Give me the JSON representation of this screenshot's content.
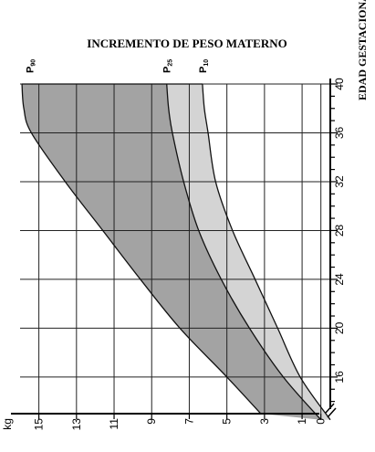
{
  "chart_data": {
    "type": "area",
    "title": "INCREMENTO DE PESO MATERNO",
    "xlabel": "EDAD GESTACIONAL (semanas)",
    "ylabel": "kg",
    "x_axis": {
      "label": "EDAD GESTACIONAL (semanas)",
      "range": [
        13,
        40
      ],
      "ticks": [
        16,
        20,
        24,
        28,
        32,
        36,
        40
      ],
      "break_mark": true
    },
    "y_axis": {
      "label": "kg",
      "range": [
        -0.5,
        16
      ],
      "ticks": [
        15,
        13,
        11,
        9,
        7,
        5,
        3,
        1,
        0
      ]
    },
    "orientation": "rotated-90",
    "grid": true,
    "series": [
      {
        "name": "P90",
        "label_main": "P",
        "label_sub": "90",
        "x": [
          13,
          16,
          20,
          24,
          28,
          32,
          36,
          38,
          40
        ],
        "values": [
          3.2,
          5.0,
          7.5,
          9.6,
          11.6,
          13.6,
          15.4,
          15.8,
          15.9
        ]
      },
      {
        "name": "P25",
        "label_main": "P",
        "label_sub": "25",
        "x": [
          12.5,
          16,
          20,
          24,
          28,
          32,
          36,
          38,
          40
        ],
        "values": [
          0.0,
          2.0,
          3.8,
          5.3,
          6.5,
          7.3,
          7.9,
          8.1,
          8.2
        ]
      },
      {
        "name": "P10",
        "label_main": "P",
        "label_sub": "10",
        "x": [
          12.5,
          16,
          20,
          24,
          28,
          32,
          36,
          38,
          40
        ],
        "values": [
          -0.5,
          1.1,
          2.3,
          3.5,
          4.7,
          5.6,
          6.0,
          6.2,
          6.3
        ]
      }
    ],
    "fills": {
      "p90_to_p25": "#a3a3a3",
      "p25_to_p10": "#d4d4d4"
    }
  }
}
